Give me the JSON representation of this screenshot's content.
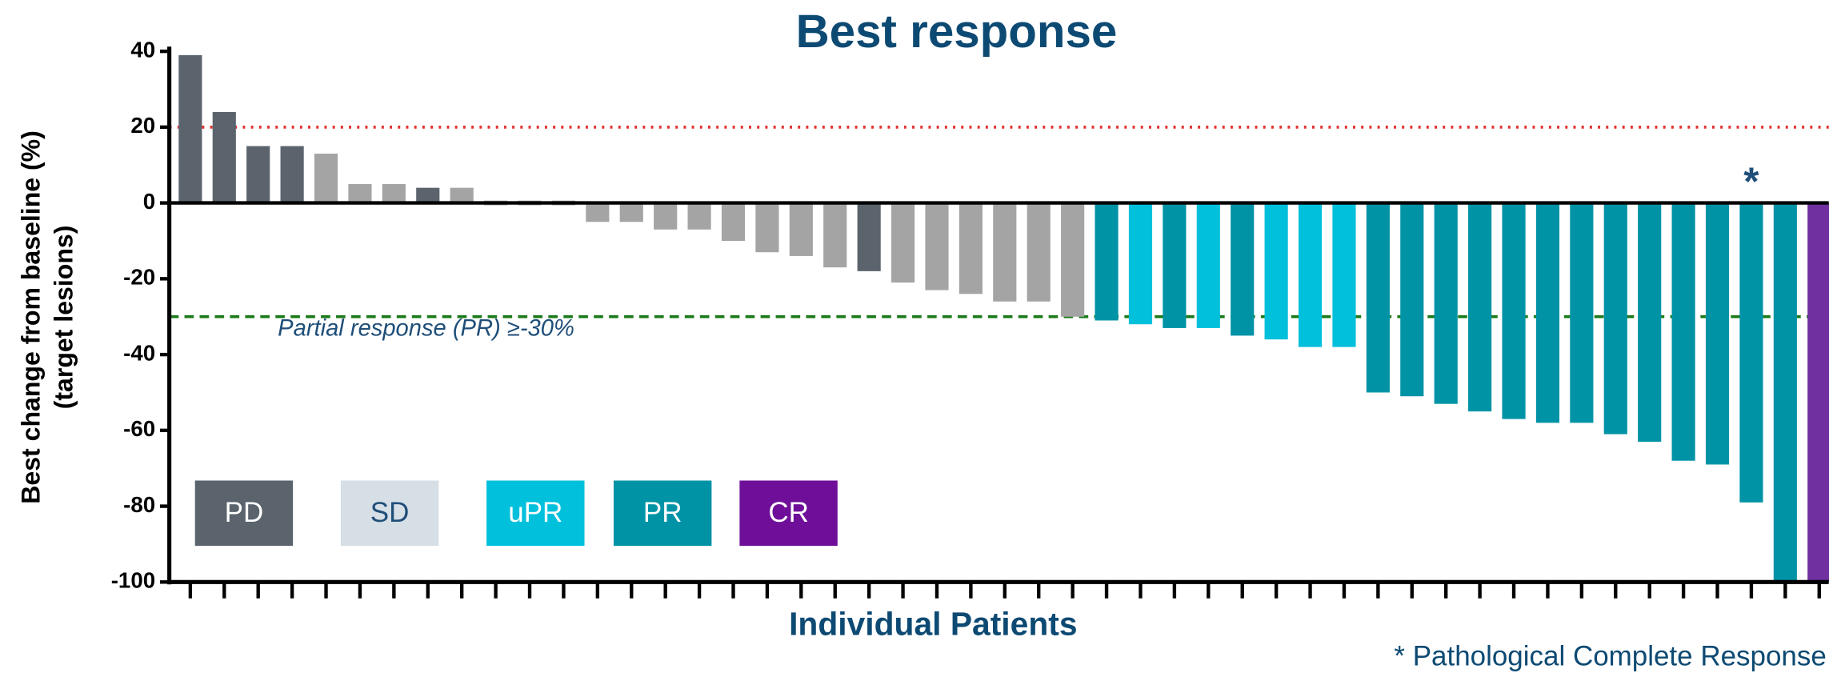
{
  "chart_data": {
    "type": "bar",
    "title": "Best response",
    "x_label": "Individual Patients",
    "y_label": [
      "Best change from baseline (%)",
      "(target lesions)"
    ],
    "categories": [
      null,
      null,
      null,
      null,
      null,
      null,
      null,
      null,
      null,
      null,
      null,
      null,
      null,
      null,
      null,
      null,
      null,
      null,
      null,
      null,
      null,
      null,
      null,
      null,
      null,
      null,
      null,
      null,
      null,
      null,
      null,
      null,
      null,
      null,
      null,
      null,
      null,
      null,
      null,
      null,
      null,
      null,
      null,
      null,
      null,
      null,
      null,
      null,
      null
    ],
    "values": [
      39,
      24,
      15,
      15,
      13,
      5,
      5,
      4,
      4,
      0,
      0,
      0,
      -5,
      -5,
      -7,
      -7,
      -10,
      -13,
      -14,
      -17,
      -18,
      -21,
      -23,
      -24,
      -26,
      -26,
      -30,
      -31,
      -32,
      -33,
      -33,
      -35,
      -36,
      -38,
      -38,
      -50,
      -51,
      -53,
      -55,
      -57,
      -58,
      -58,
      -61,
      -63,
      -68,
      -69,
      -79,
      -100,
      -100
    ],
    "bar_colors": [
      "#5b646d",
      "#5b646d",
      "#5b646d",
      "#5b646d",
      "#a4a4a4",
      "#a4a4a4",
      "#a4a4a4",
      "#5b646d",
      "#a4a4a4",
      "#a4a4a4",
      "#a4a4a4",
      "#a4a4a4",
      "#a4a4a4",
      "#a4a4a4",
      "#a4a4a4",
      "#a4a4a4",
      "#a4a4a4",
      "#a4a4a4",
      "#a4a4a4",
      "#a4a4a4",
      "#5b646d",
      "#a4a4a4",
      "#a4a4a4",
      "#a4a4a4",
      "#a4a4a4",
      "#a4a4a4",
      "#a4a4a4",
      "#0093a6",
      "#00c0dc",
      "#0093a6",
      "#00c0dc",
      "#0093a6",
      "#00c0dc",
      "#00c0dc",
      "#00c0dc",
      "#0093a6",
      "#0093a6",
      "#0093a6",
      "#0093a6",
      "#0093a6",
      "#0093a6",
      "#0093a6",
      "#0093a6",
      "#0093a6",
      "#0093a6",
      "#0093a6",
      "#0093a6",
      "#0093a6",
      "#7030a0"
    ],
    "ylim": [
      -100,
      40
    ],
    "yticks": [
      40,
      20,
      0,
      -20,
      -40,
      -60,
      -80,
      -100
    ],
    "reference_lines": [
      {
        "value": 20,
        "color": "#e53030",
        "style": "dotted"
      },
      {
        "value": -30,
        "color": "#1a7a1a",
        "style": "dashed",
        "label": "Partial response (PR) ≥-30%"
      }
    ],
    "annotations": [
      {
        "text": "*",
        "x": 47
      }
    ],
    "footnote": "* Pathological Complete Response",
    "legend": [
      {
        "label": "PD",
        "color": "#5b646d",
        "text_color": "#ffffff"
      },
      {
        "label": "SD",
        "color": "#d6dfe6",
        "text_color": "#1f4e79"
      },
      {
        "label": "uPR",
        "color": "#00c0dc",
        "text_color": "#ffffff"
      },
      {
        "label": "PR",
        "color": "#0093a6",
        "text_color": "#ffffff"
      },
      {
        "label": "CR",
        "color": "#6f0f99",
        "text_color": "#ffffff"
      }
    ]
  }
}
